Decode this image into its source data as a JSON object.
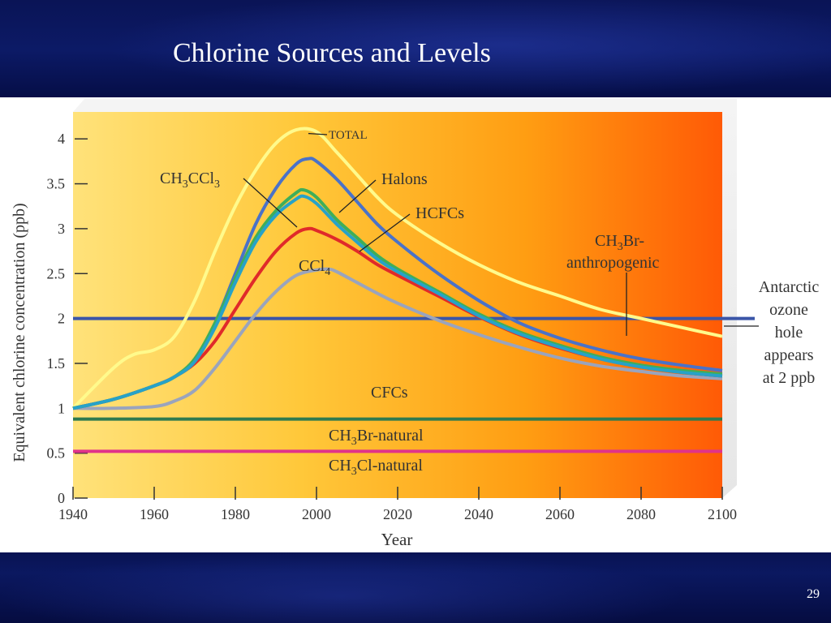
{
  "slide": {
    "title": "Chlorine Sources and Levels",
    "page_number": "29"
  },
  "colors": {
    "background": "#06104a",
    "total": "#fffa8c",
    "halons": "#4a72c8",
    "hcfcs": "#3fae5a",
    "ch3ccl3": "#27a2c8",
    "ccl4": "#e02a2a",
    "cfcs": "#9aa4bd",
    "threshold": "#3a55a8",
    "ch3br_natural": "#2f7a4f",
    "ch3cl_natural": "#e0338a"
  },
  "chart_data": {
    "type": "line",
    "title": "",
    "xlabel": "Year",
    "ylabel": "Equivalent chlorine concentration (ppb)",
    "xlim": [
      1940,
      2100
    ],
    "ylim": [
      0,
      4.3
    ],
    "x_ticks": [
      1940,
      1960,
      1980,
      2000,
      2020,
      2040,
      2060,
      2080,
      2100
    ],
    "y_ticks": [
      {
        "value": 0,
        "label": "0"
      },
      {
        "value": 0.5,
        "label": "0.5"
      },
      {
        "value": 1,
        "label": "1"
      },
      {
        "value": 1.5,
        "label": "1.5"
      },
      {
        "value": 2,
        "label": "2"
      },
      {
        "value": 2.5,
        "label": "2.5"
      },
      {
        "value": 3,
        "label": "3"
      },
      {
        "value": 3.5,
        "label": "3.5"
      },
      {
        "value": 4,
        "label": "4"
      }
    ],
    "grid": false,
    "series": [
      {
        "name": "TOTAL",
        "color": "#fffa8c",
        "points": [
          [
            1940,
            1.0
          ],
          [
            1950,
            1.45
          ],
          [
            1955,
            1.6
          ],
          [
            1960,
            1.65
          ],
          [
            1965,
            1.8
          ],
          [
            1970,
            2.2
          ],
          [
            1975,
            2.75
          ],
          [
            1980,
            3.25
          ],
          [
            1985,
            3.65
          ],
          [
            1990,
            3.95
          ],
          [
            1995,
            4.1
          ],
          [
            2000,
            4.08
          ],
          [
            2005,
            3.85
          ],
          [
            2010,
            3.6
          ],
          [
            2015,
            3.35
          ],
          [
            2020,
            3.15
          ],
          [
            2030,
            2.85
          ],
          [
            2040,
            2.6
          ],
          [
            2050,
            2.4
          ],
          [
            2060,
            2.25
          ],
          [
            2070,
            2.1
          ],
          [
            2080,
            2.0
          ],
          [
            2090,
            1.9
          ],
          [
            2100,
            1.8
          ]
        ]
      },
      {
        "name": "Halons",
        "color": "#4a72c8",
        "points": [
          [
            1940,
            1.0
          ],
          [
            1950,
            1.1
          ],
          [
            1960,
            1.25
          ],
          [
            1965,
            1.35
          ],
          [
            1970,
            1.55
          ],
          [
            1975,
            1.95
          ],
          [
            1980,
            2.5
          ],
          [
            1985,
            3.05
          ],
          [
            1990,
            3.45
          ],
          [
            1995,
            3.72
          ],
          [
            1998,
            3.78
          ],
          [
            2000,
            3.75
          ],
          [
            2005,
            3.55
          ],
          [
            2010,
            3.3
          ],
          [
            2015,
            3.05
          ],
          [
            2020,
            2.85
          ],
          [
            2030,
            2.5
          ],
          [
            2040,
            2.2
          ],
          [
            2050,
            1.95
          ],
          [
            2060,
            1.78
          ],
          [
            2070,
            1.65
          ],
          [
            2080,
            1.55
          ],
          [
            2090,
            1.48
          ],
          [
            2100,
            1.42
          ]
        ]
      },
      {
        "name": "HCFCs",
        "color": "#3fae5a",
        "points": [
          [
            1940,
            1.0
          ],
          [
            1950,
            1.1
          ],
          [
            1960,
            1.25
          ],
          [
            1965,
            1.35
          ],
          [
            1970,
            1.55
          ],
          [
            1975,
            1.95
          ],
          [
            1980,
            2.45
          ],
          [
            1985,
            2.9
          ],
          [
            1990,
            3.2
          ],
          [
            1995,
            3.4
          ],
          [
            1997,
            3.43
          ],
          [
            2000,
            3.35
          ],
          [
            2005,
            3.1
          ],
          [
            2010,
            2.9
          ],
          [
            2015,
            2.7
          ],
          [
            2020,
            2.55
          ],
          [
            2030,
            2.3
          ],
          [
            2040,
            2.05
          ],
          [
            2050,
            1.85
          ],
          [
            2060,
            1.7
          ],
          [
            2070,
            1.57
          ],
          [
            2080,
            1.48
          ],
          [
            2090,
            1.42
          ],
          [
            2100,
            1.38
          ]
        ]
      },
      {
        "name": "CH3CCl3",
        "color": "#27a2c8",
        "points": [
          [
            1940,
            1.0
          ],
          [
            1950,
            1.1
          ],
          [
            1960,
            1.25
          ],
          [
            1965,
            1.35
          ],
          [
            1970,
            1.52
          ],
          [
            1975,
            1.9
          ],
          [
            1980,
            2.4
          ],
          [
            1985,
            2.85
          ],
          [
            1990,
            3.15
          ],
          [
            1995,
            3.33
          ],
          [
            1997,
            3.36
          ],
          [
            2000,
            3.28
          ],
          [
            2005,
            3.05
          ],
          [
            2010,
            2.85
          ],
          [
            2015,
            2.66
          ],
          [
            2020,
            2.52
          ],
          [
            2030,
            2.28
          ],
          [
            2040,
            2.03
          ],
          [
            2050,
            1.83
          ],
          [
            2060,
            1.68
          ],
          [
            2070,
            1.55
          ],
          [
            2080,
            1.46
          ],
          [
            2090,
            1.4
          ],
          [
            2100,
            1.36
          ]
        ]
      },
      {
        "name": "CCl4",
        "color": "#e02a2a",
        "points": [
          [
            1940,
            1.0
          ],
          [
            1950,
            1.1
          ],
          [
            1960,
            1.25
          ],
          [
            1965,
            1.35
          ],
          [
            1970,
            1.5
          ],
          [
            1975,
            1.75
          ],
          [
            1980,
            2.1
          ],
          [
            1985,
            2.45
          ],
          [
            1990,
            2.75
          ],
          [
            1995,
            2.95
          ],
          [
            1998,
            3.0
          ],
          [
            2000,
            2.98
          ],
          [
            2005,
            2.88
          ],
          [
            2010,
            2.75
          ],
          [
            2015,
            2.6
          ],
          [
            2020,
            2.48
          ],
          [
            2030,
            2.25
          ],
          [
            2040,
            2.02
          ],
          [
            2050,
            1.82
          ],
          [
            2060,
            1.67
          ],
          [
            2070,
            1.55
          ],
          [
            2080,
            1.46
          ],
          [
            2090,
            1.4
          ],
          [
            2100,
            1.36
          ]
        ]
      },
      {
        "name": "CFCs",
        "color": "#9aa4bd",
        "points": [
          [
            1940,
            1.0
          ],
          [
            1950,
            1.0
          ],
          [
            1960,
            1.02
          ],
          [
            1965,
            1.08
          ],
          [
            1970,
            1.2
          ],
          [
            1975,
            1.45
          ],
          [
            1980,
            1.75
          ],
          [
            1985,
            2.05
          ],
          [
            1990,
            2.3
          ],
          [
            1995,
            2.48
          ],
          [
            2000,
            2.54
          ],
          [
            2003,
            2.55
          ],
          [
            2005,
            2.52
          ],
          [
            2010,
            2.4
          ],
          [
            2015,
            2.28
          ],
          [
            2020,
            2.17
          ],
          [
            2030,
            1.98
          ],
          [
            2040,
            1.82
          ],
          [
            2050,
            1.68
          ],
          [
            2060,
            1.56
          ],
          [
            2070,
            1.47
          ],
          [
            2080,
            1.41
          ],
          [
            2090,
            1.36
          ],
          [
            2100,
            1.33
          ]
        ]
      }
    ],
    "reference_lines": [
      {
        "name": "threshold",
        "value": 2.0,
        "color": "#3a55a8"
      },
      {
        "name": "CH3Br-natural",
        "value": 0.88,
        "color": "#2f7a4f"
      },
      {
        "name": "CH3Cl-natural",
        "value": 0.52,
        "color": "#e0338a"
      }
    ],
    "annotations": {
      "total": "TOTAL",
      "halons": "Halons",
      "hcfcs": "HCFCs",
      "ch3ccl3": "CH3CCl3",
      "ccl4": "CCl4",
      "cfcs": "CFCs",
      "ch3br_anthro_line1": "CH3Br-",
      "ch3br_anthro_line2": "anthropogenic",
      "ch3br_natural": "CH3Br-natural",
      "ch3cl_natural": "CH3Cl-natural",
      "antarctic_lines": [
        "Antarctic",
        "ozone",
        "hole",
        "appears",
        "at 2 ppb"
      ]
    }
  }
}
